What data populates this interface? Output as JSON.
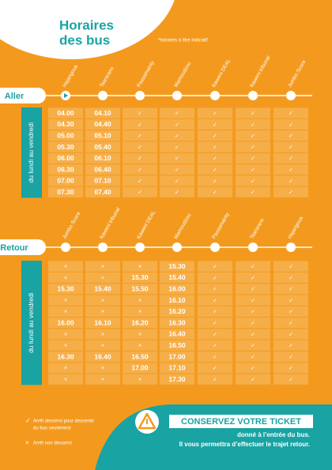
{
  "header": {
    "title_line1": "Horaires",
    "title_line2": "des bus",
    "note": "*horaires à titre indicatif"
  },
  "aller": {
    "label": "Aller",
    "days": "du lundi au vendredi",
    "stops": [
      "Hajangoua",
      "Tsararano",
      "Passamainty",
      "Mamoudzou",
      "Kaweni DEAL",
      "Kaweni tribunal",
      "Jumbo Score"
    ],
    "rows": [
      [
        "04.00",
        "04.10",
        "✓",
        "✓",
        "✓",
        "✓",
        "✓"
      ],
      [
        "04.30",
        "04.40",
        "✓",
        "✓",
        "✓",
        "✓",
        "✓"
      ],
      [
        "05.00",
        "05.10",
        "✓",
        "✓",
        "✓",
        "✓",
        "✓"
      ],
      [
        "05.30",
        "05.40",
        "✓",
        "✓",
        "✓",
        "✓",
        "✓"
      ],
      [
        "06.00",
        "06.10",
        "✓",
        "✓",
        "✓",
        "✓",
        "✓"
      ],
      [
        "06.30",
        "06.40",
        "✓",
        "✓",
        "✓",
        "✓",
        "✓"
      ],
      [
        "07.00",
        "07.10",
        "✓",
        "✓",
        "✓",
        "✓",
        "✓"
      ],
      [
        "07.30",
        "07.40",
        "✓",
        "✓",
        "✓",
        "✓",
        "✓"
      ]
    ]
  },
  "retour": {
    "label": "Retour",
    "days": "du lundi au vendredi",
    "stops": [
      "Jumbo Score",
      "Kaweni tribunal",
      "Kaweni DEAL",
      "Mamoudzou",
      "Passamainty",
      "Tsararano",
      "Hajangoua"
    ],
    "rows": [
      [
        "×",
        "×",
        "×",
        "15.30",
        "✓",
        "✓",
        "✓"
      ],
      [
        "×",
        "×",
        "15.30",
        "15.40",
        "✓",
        "✓",
        "✓"
      ],
      [
        "15.30",
        "15.40",
        "15.50",
        "16.00",
        "✓",
        "✓",
        "✓"
      ],
      [
        "×",
        "×",
        "×",
        "16.10",
        "✓",
        "✓",
        "✓"
      ],
      [
        "×",
        "×",
        "×",
        "16.20",
        "✓",
        "✓",
        "✓"
      ],
      [
        "16.00",
        "16.10",
        "16.20",
        "16.30",
        "✓",
        "✓",
        "✓"
      ],
      [
        "×",
        "×",
        "×",
        "16.40",
        "✓",
        "✓",
        "✓"
      ],
      [
        "×",
        "×",
        "×",
        "16.50",
        "✓",
        "✓",
        "✓"
      ],
      [
        "16.30",
        "16.40",
        "16.50",
        "17.00",
        "✓",
        "✓",
        "✓"
      ],
      [
        "×",
        "×",
        "17.00",
        "17.10",
        "✓",
        "✓",
        "✓"
      ],
      [
        "×",
        "×",
        "×",
        "17.30",
        "✓",
        "✓",
        "✓"
      ]
    ]
  },
  "legend": [
    {
      "symbol": "✓",
      "line1": "Arrêt desservi pour descente",
      "line2": "du bus seulement"
    },
    {
      "symbol": "×",
      "line1": "Arrêt non desservi"
    }
  ],
  "notice": {
    "title": "CONSERVEZ VOTRE TICKET",
    "line1": "donné à l’entrée du bus.",
    "line2": "Il vous permettra d’effectuer le trajet retour."
  }
}
